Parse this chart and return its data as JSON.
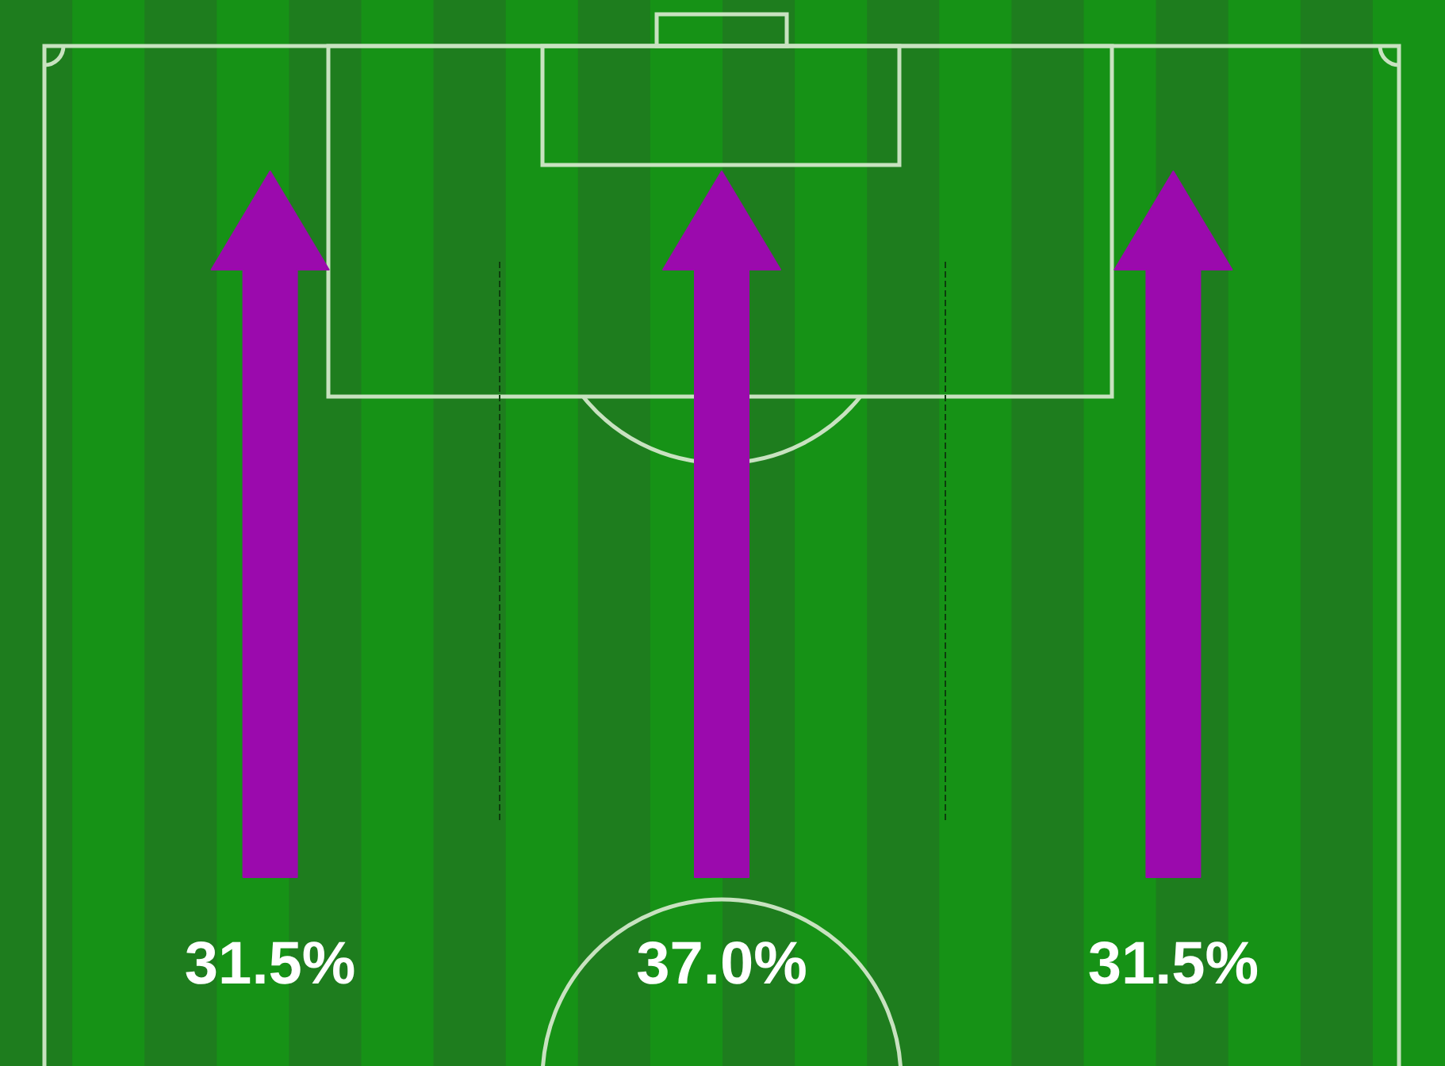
{
  "chart_data": {
    "type": "other",
    "categories": [
      null,
      null,
      null
    ],
    "values": [
      31.5,
      37.0,
      31.5
    ],
    "value_labels": [
      "31.5%",
      "37.0%",
      "31.5%"
    ],
    "color": "#9b0aad"
  }
}
